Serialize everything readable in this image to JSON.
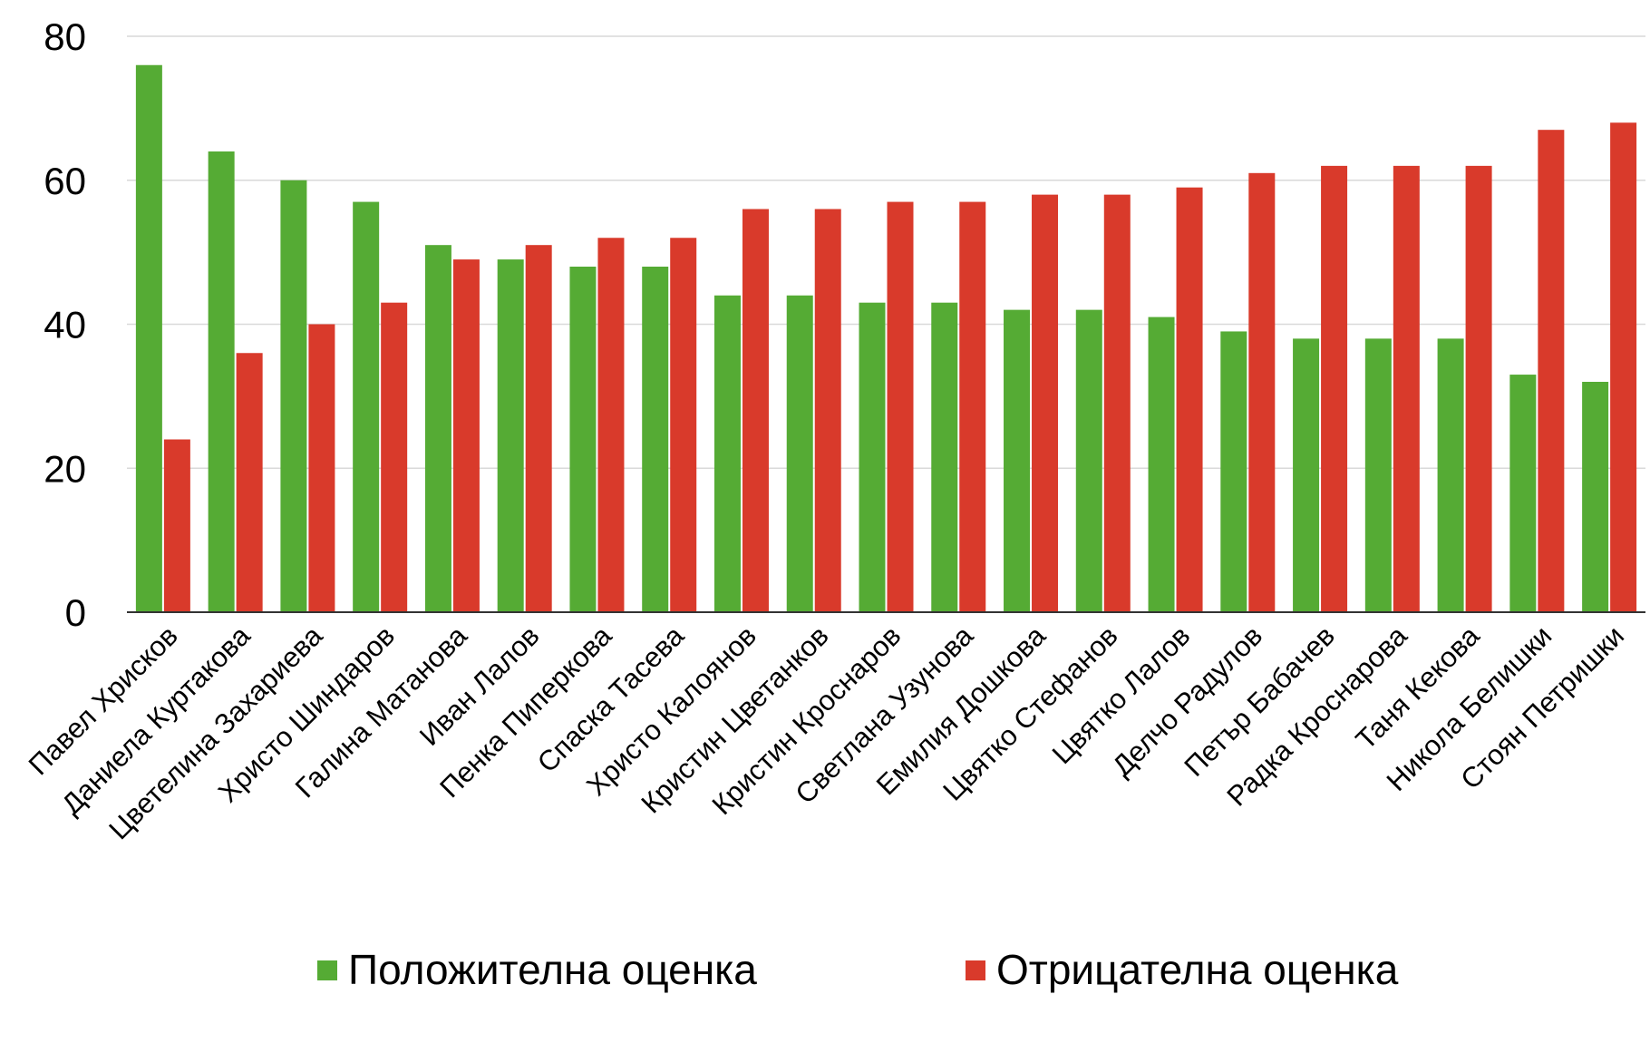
{
  "chart_data": {
    "type": "bar",
    "title": "",
    "xlabel": "",
    "ylabel": "",
    "ylim": [
      0,
      80
    ],
    "yticks": [
      0,
      20,
      40,
      60,
      80
    ],
    "grid": true,
    "legend_position": "bottom",
    "categories": [
      "Павел Хрисков",
      "Даниела Куртакова",
      "Цветелина Захариева",
      "Христо Шиндаров",
      "Галина Матанова",
      "Иван Лалов",
      "Пенка Пиперкова",
      "Спаска Тасева",
      "Христо Калоянов",
      "Кристин Цветанков",
      "Кристин Кроснаров",
      "Светлана Узунова",
      "Емилия Дошкова",
      "Цвятко Стефанов",
      "Цвятко Лалов",
      "Делчо Радулов",
      "Петър Бабачев",
      "Радка Кроснарова",
      "Таня Кекова",
      "Никола Белишки",
      "Стоян Петришки"
    ],
    "series": [
      {
        "name": "Положителна оценка",
        "color": "#55ab34",
        "values": [
          76,
          64,
          60,
          57,
          51,
          49,
          48,
          48,
          44,
          44,
          43,
          43,
          42,
          42,
          41,
          39,
          38,
          38,
          38,
          33,
          32
        ]
      },
      {
        "name": "Отрицателна оценка",
        "color": "#d93a2b",
        "values": [
          24,
          36,
          40,
          43,
          49,
          51,
          52,
          52,
          56,
          56,
          57,
          57,
          58,
          58,
          59,
          61,
          62,
          62,
          62,
          67,
          68
        ]
      }
    ]
  }
}
